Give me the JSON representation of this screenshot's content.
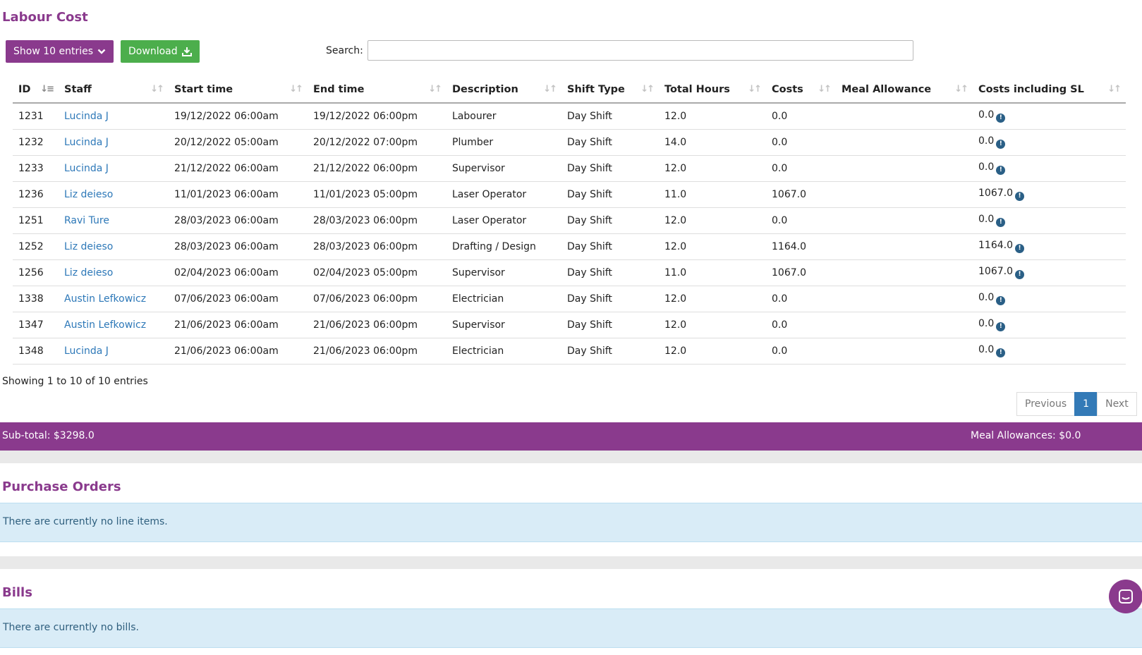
{
  "labour": {
    "title": "Labour Cost",
    "show_entries_label": "Show 10 entries",
    "download_label": "Download",
    "search_label": "Search:",
    "search_value": "",
    "columns": [
      "ID",
      "Staff",
      "Start time",
      "End time",
      "Description",
      "Shift Type",
      "Total Hours",
      "Costs",
      "Meal Allowance",
      "Costs including SL"
    ],
    "rows": [
      {
        "id": "1231",
        "staff": "Lucinda J",
        "start": "19/12/2022 06:00am",
        "end": "19/12/2022 06:00pm",
        "description": "Labourer",
        "shift": "Day Shift",
        "hours": "12.0",
        "costs": "0.0",
        "meal": "",
        "costs_sl": "0.0"
      },
      {
        "id": "1232",
        "staff": "Lucinda J",
        "start": "20/12/2022 05:00am",
        "end": "20/12/2022 07:00pm",
        "description": "Plumber",
        "shift": "Day Shift",
        "hours": "14.0",
        "costs": "0.0",
        "meal": "",
        "costs_sl": "0.0"
      },
      {
        "id": "1233",
        "staff": "Lucinda J",
        "start": "21/12/2022 06:00am",
        "end": "21/12/2022 06:00pm",
        "description": "Supervisor",
        "shift": "Day Shift",
        "hours": "12.0",
        "costs": "0.0",
        "meal": "",
        "costs_sl": "0.0"
      },
      {
        "id": "1236",
        "staff": "Liz deieso",
        "start": "11/01/2023 06:00am",
        "end": "11/01/2023 05:00pm",
        "description": "Laser Operator",
        "shift": "Day Shift",
        "hours": "11.0",
        "costs": "1067.0",
        "meal": "",
        "costs_sl": "1067.0"
      },
      {
        "id": "1251",
        "staff": "Ravi Ture",
        "start": "28/03/2023 06:00am",
        "end": "28/03/2023 06:00pm",
        "description": "Laser Operator",
        "shift": "Day Shift",
        "hours": "12.0",
        "costs": "0.0",
        "meal": "",
        "costs_sl": "0.0"
      },
      {
        "id": "1252",
        "staff": "Liz deieso",
        "start": "28/03/2023 06:00am",
        "end": "28/03/2023 06:00pm",
        "description": "Drafting / Design",
        "shift": "Day Shift",
        "hours": "12.0",
        "costs": "1164.0",
        "meal": "",
        "costs_sl": "1164.0"
      },
      {
        "id": "1256",
        "staff": "Liz deieso",
        "start": "02/04/2023 06:00am",
        "end": "02/04/2023 05:00pm",
        "description": "Supervisor",
        "shift": "Day Shift",
        "hours": "11.0",
        "costs": "1067.0",
        "meal": "",
        "costs_sl": "1067.0"
      },
      {
        "id": "1338",
        "staff": "Austin Lefkowicz",
        "start": "07/06/2023 06:00am",
        "end": "07/06/2023 06:00pm",
        "description": "Electrician",
        "shift": "Day Shift",
        "hours": "12.0",
        "costs": "0.0",
        "meal": "",
        "costs_sl": "0.0"
      },
      {
        "id": "1347",
        "staff": "Austin Lefkowicz",
        "start": "21/06/2023 06:00am",
        "end": "21/06/2023 06:00pm",
        "description": "Supervisor",
        "shift": "Day Shift",
        "hours": "12.0",
        "costs": "0.0",
        "meal": "",
        "costs_sl": "0.0"
      },
      {
        "id": "1348",
        "staff": "Lucinda J",
        "start": "21/06/2023 06:00am",
        "end": "21/06/2023 06:00pm",
        "description": "Electrician",
        "shift": "Day Shift",
        "hours": "12.0",
        "costs": "0.0",
        "meal": "",
        "costs_sl": "0.0"
      }
    ],
    "showing_text": "Showing 1 to 10 of 10 entries",
    "pagination": {
      "previous": "Previous",
      "current": "1",
      "next": "Next"
    },
    "subtotal": "Sub-total: $3298.0",
    "meal_allowances": "Meal Allowances: $0.0"
  },
  "purchase_orders": {
    "title": "Purchase Orders",
    "empty_text": "There are currently no line items."
  },
  "bills": {
    "title": "Bills",
    "empty_text": "There are currently no bills."
  },
  "colors": {
    "brand_purple": "#8a3a8d",
    "download_green": "#4cae4c",
    "link_blue": "#2d78b8",
    "pager_active": "#337ab7",
    "notice_bg": "#d9ecf7"
  },
  "icons": {
    "show_entries": "chevron-down-icon",
    "download": "download-icon",
    "info": "info-icon",
    "chat": "chat-icon"
  }
}
